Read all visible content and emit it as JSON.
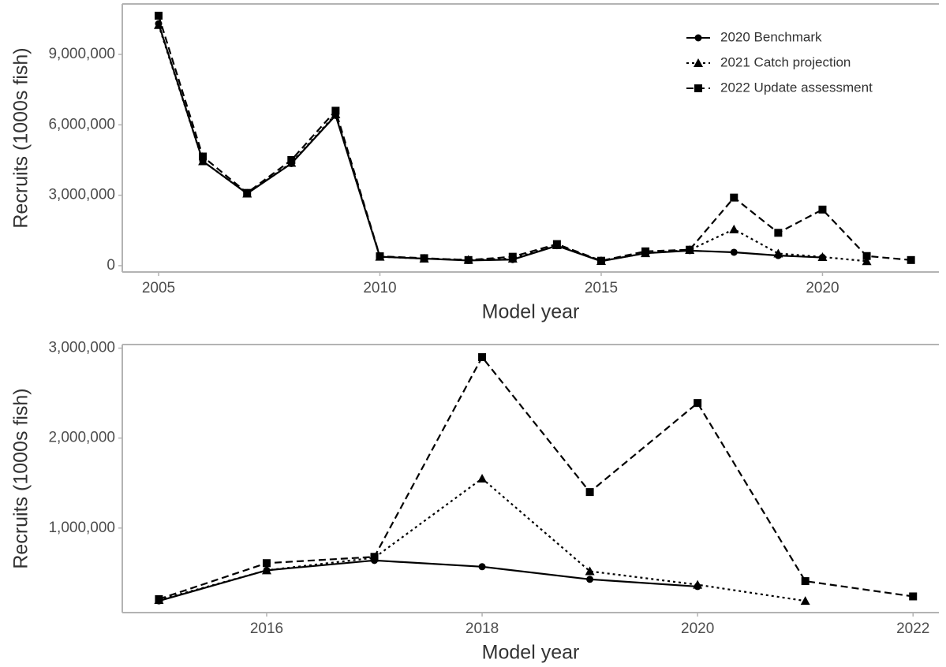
{
  "chart_data": [
    {
      "type": "line",
      "x_label": "Model year",
      "y_label": "Recruits (1000s fish)",
      "x": [
        2005,
        2006,
        2007,
        2008,
        2009,
        2010,
        2011,
        2012,
        2013,
        2014,
        2015,
        2016,
        2017,
        2018,
        2019,
        2020,
        2021,
        2022
      ],
      "series": [
        {
          "name": "2020 Benchmark",
          "color": "#000000",
          "dash": "solid",
          "marker": "circle",
          "values": [
            10310000,
            4450000,
            3070000,
            4350000,
            6400000,
            380000,
            300000,
            220000,
            260000,
            850000,
            190000,
            530000,
            640000,
            570000,
            430000,
            350000,
            null,
            null
          ]
        },
        {
          "name": "2021 Catch projection",
          "color": "#000000",
          "dash": "dotted",
          "marker": "triangle",
          "values": [
            10250000,
            4450000,
            3070000,
            4380000,
            6450000,
            380000,
            300000,
            250000,
            300000,
            870000,
            200000,
            530000,
            670000,
            1550000,
            520000,
            370000,
            190000,
            null
          ]
        },
        {
          "name": "2022 Update assessment",
          "color": "#000000",
          "dash": "dashed",
          "marker": "square",
          "values": [
            10650000,
            4650000,
            3100000,
            4500000,
            6600000,
            400000,
            320000,
            240000,
            380000,
            920000,
            210000,
            610000,
            680000,
            2900000,
            1400000,
            2390000,
            410000,
            240000
          ]
        }
      ],
      "xlim": [
        2004.18,
        2022.63
      ],
      "xticks": [
        2005,
        2010,
        2015,
        2020
      ],
      "ylim": [
        -270000,
        11150000
      ],
      "yticks": [
        0,
        {
          "value": 3000000,
          "label": "3,000,000"
        },
        {
          "value": 6000000,
          "label": "6,000,000"
        },
        {
          "value": 9000000,
          "label": "9,000,000"
        }
      ],
      "legend": "top-right"
    },
    {
      "type": "line",
      "x_label": "Model year",
      "y_label": "Recruits (1000s fish)",
      "x": [
        2015,
        2016,
        2017,
        2018,
        2019,
        2020,
        2021,
        2022
      ],
      "series": [
        {
          "name": "2020 Benchmark",
          "color": "#000000",
          "dash": "solid",
          "marker": "circle",
          "values": [
            190000,
            530000,
            640000,
            570000,
            430000,
            350000,
            null,
            null
          ]
        },
        {
          "name": "2021 Catch projection",
          "color": "#000000",
          "dash": "dotted",
          "marker": "triangle",
          "values": [
            200000,
            530000,
            670000,
            1550000,
            520000,
            370000,
            190000,
            null
          ]
        },
        {
          "name": "2022 Update assessment",
          "color": "#000000",
          "dash": "dashed",
          "marker": "square",
          "values": [
            210000,
            610000,
            680000,
            2900000,
            1400000,
            2390000,
            410000,
            240000
          ]
        }
      ],
      "xlim": [
        2014.66,
        2022.24
      ],
      "xticks": [
        2016,
        2018,
        2020,
        2022
      ],
      "ylim": [
        60000,
        3040000
      ],
      "yticks": [
        {
          "value": 1000000,
          "label": "1,000,000"
        },
        {
          "value": 2000000,
          "label": "2,000,000"
        },
        {
          "value": 3000000,
          "label": "3,000,000"
        }
      ]
    }
  ]
}
